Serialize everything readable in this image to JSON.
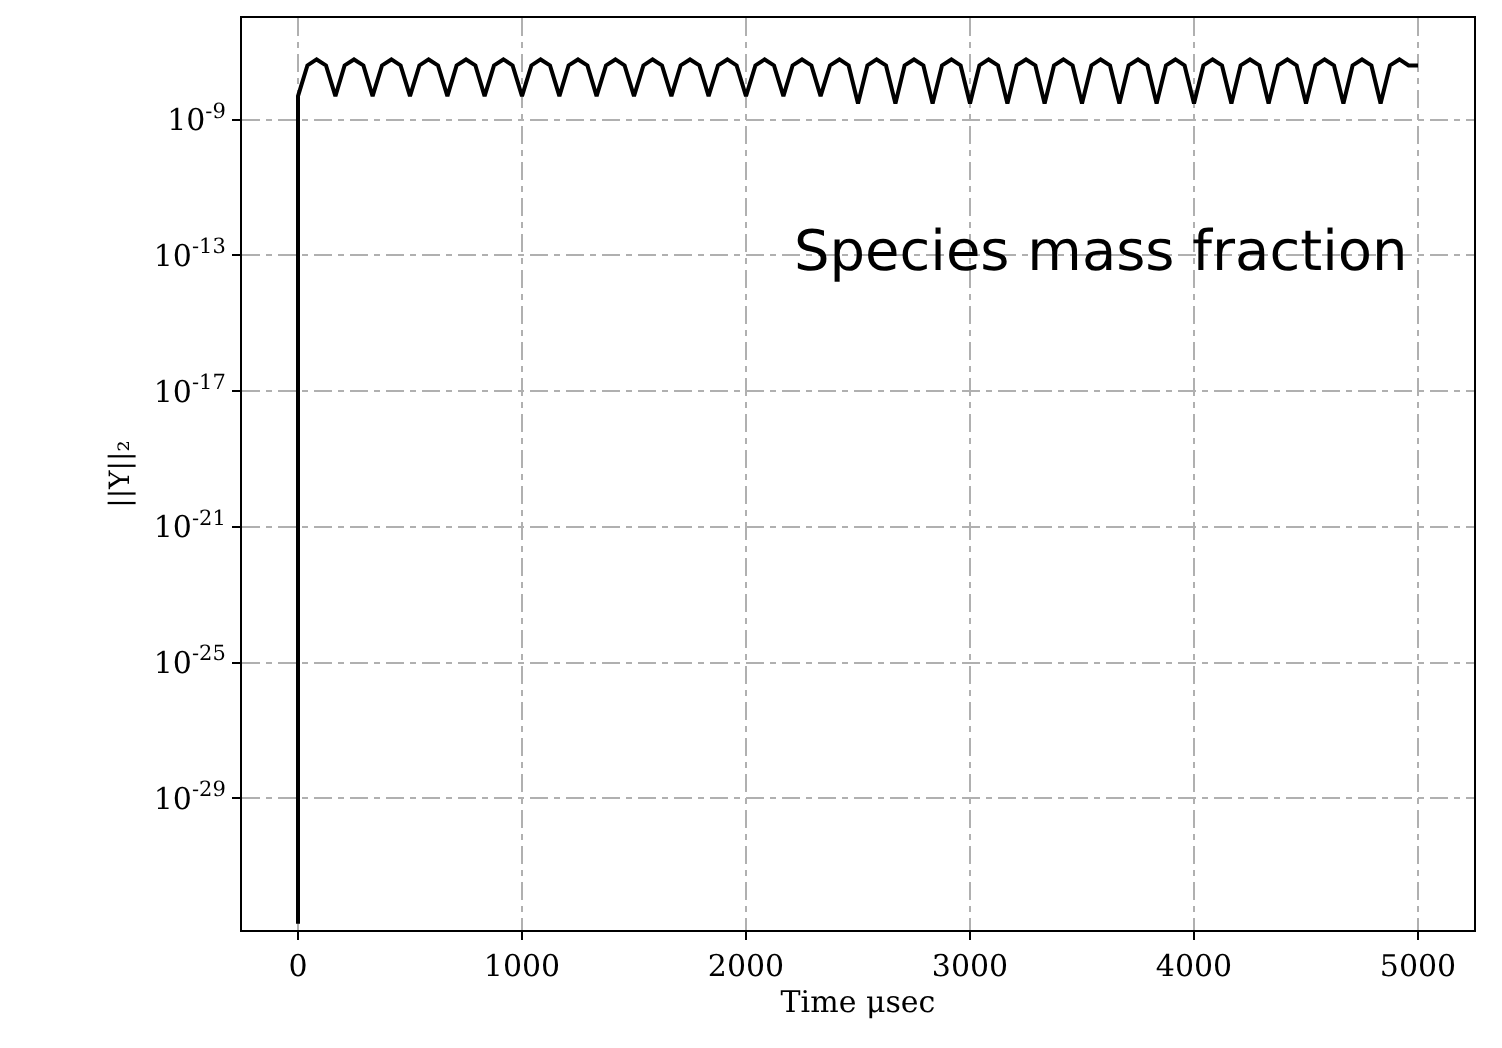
{
  "chart_data": {
    "type": "line",
    "xlabel": "Time μsec",
    "ylabel": "||Y||₂",
    "annotations": [
      "Species mass fraction"
    ],
    "log": "y",
    "grid": true,
    "line_style": "solid",
    "marker": "none",
    "xlim": [
      -250,
      5250
    ],
    "xticks": [
      0,
      1000,
      2000,
      3000,
      4000,
      5000
    ],
    "ylim": [
      1.3e-33,
      1e-06
    ],
    "yticks": [
      {
        "value": 1e-09,
        "label": "10$^{-9}$"
      },
      {
        "value": 1e-13,
        "label": "10$^{-13}$"
      },
      {
        "value": 1e-17,
        "label": "10$^{-17}$"
      },
      {
        "value": 1e-21,
        "label": "10$^{-21}$"
      },
      {
        "value": 1e-25,
        "label": "10$^{-25}$"
      },
      {
        "value": 1e-29,
        "label": "10$^{-29}$"
      }
    ],
    "series": [
      {
        "color": "#000000",
        "x": [
          0,
          0,
          42,
          83,
          125,
          167,
          208,
          250,
          292,
          333,
          375,
          417,
          458,
          500,
          542,
          583,
          625,
          667,
          708,
          750,
          792,
          833,
          875,
          917,
          958,
          1000,
          1042,
          1083,
          1125,
          1167,
          1208,
          1250,
          1292,
          1333,
          1375,
          1417,
          1458,
          1500,
          1542,
          1583,
          1625,
          1667,
          1708,
          1750,
          1792,
          1833,
          1875,
          1917,
          1958,
          2000,
          2042,
          2083,
          2125,
          2167,
          2208,
          2250,
          2292,
          2333,
          2375,
          2417,
          2458,
          2500,
          2542,
          2583,
          2625,
          2667,
          2708,
          2750,
          2792,
          2833,
          2875,
          2917,
          2958,
          3000,
          3042,
          3083,
          3125,
          3167,
          3208,
          3250,
          3292,
          3333,
          3375,
          3417,
          3458,
          3500,
          3542,
          3583,
          3625,
          3667,
          3708,
          3750,
          3792,
          3833,
          3875,
          3917,
          3958,
          4000,
          4042,
          4083,
          4125,
          4167,
          4208,
          4250,
          4292,
          4333,
          4375,
          4417,
          4458,
          4500,
          4542,
          4583,
          4625,
          4667,
          4708,
          4750,
          4792,
          4833,
          4875,
          4917,
          4958,
          5000
        ],
        "values": [
          2e-33,
          5e-09,
          4e-08,
          6e-08,
          4e-08,
          5e-09,
          4e-08,
          6e-08,
          4e-08,
          5e-09,
          4e-08,
          6e-08,
          4e-08,
          5e-09,
          4e-08,
          6e-08,
          4e-08,
          5e-09,
          4e-08,
          6e-08,
          4e-08,
          5e-09,
          4e-08,
          6e-08,
          4e-08,
          5e-09,
          4e-08,
          6e-08,
          4e-08,
          5e-09,
          4e-08,
          6e-08,
          4e-08,
          5e-09,
          4e-08,
          6e-08,
          4e-08,
          5e-09,
          4e-08,
          6e-08,
          4e-08,
          5e-09,
          4e-08,
          6e-08,
          4e-08,
          5e-09,
          4e-08,
          6e-08,
          4e-08,
          5e-09,
          4e-08,
          6e-08,
          4e-08,
          5e-09,
          4e-08,
          6e-08,
          4e-08,
          5e-09,
          4e-08,
          6e-08,
          4e-08,
          3e-09,
          4e-08,
          6e-08,
          4e-08,
          3e-09,
          4e-08,
          6e-08,
          4e-08,
          3e-09,
          4e-08,
          6e-08,
          4e-08,
          3e-09,
          4e-08,
          6e-08,
          4e-08,
          3e-09,
          4e-08,
          6e-08,
          4e-08,
          3e-09,
          4e-08,
          6e-08,
          4e-08,
          3e-09,
          4e-08,
          6e-08,
          4e-08,
          3e-09,
          4e-08,
          6e-08,
          4e-08,
          3e-09,
          4e-08,
          6e-08,
          4e-08,
          3e-09,
          4e-08,
          6e-08,
          4e-08,
          3e-09,
          4e-08,
          6e-08,
          4e-08,
          3e-09,
          4e-08,
          6e-08,
          4e-08,
          3e-09,
          4e-08,
          6e-08,
          4e-08,
          3e-09,
          4e-08,
          6e-08,
          4e-08,
          3e-09,
          4e-08,
          6e-08,
          4e-08,
          4e-08
        ]
      }
    ]
  }
}
